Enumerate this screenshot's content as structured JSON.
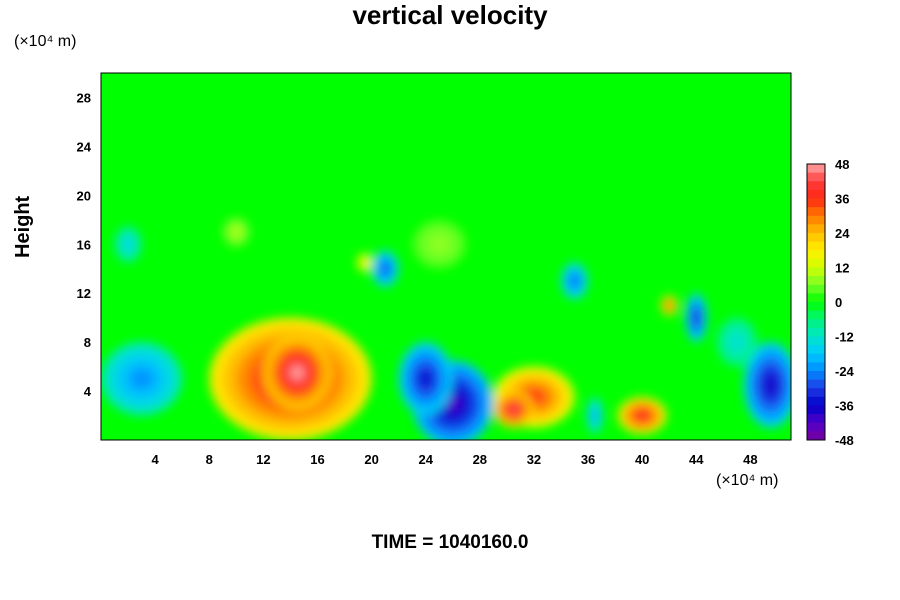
{
  "chart_data": {
    "type": "heatmap",
    "title": "vertical velocity",
    "ylabel": "Height",
    "x_unit_label": "(×10⁴ m)",
    "y_unit_label": "(×10⁴ m)",
    "time_label": "TIME = 1040160.0",
    "xlim": [
      0,
      51
    ],
    "ylim": [
      0,
      30
    ],
    "x_ticks": [
      4,
      8,
      12,
      16,
      20,
      24,
      28,
      32,
      36,
      40,
      44,
      48
    ],
    "y_ticks": [
      4,
      8,
      12,
      16,
      20,
      24,
      28
    ],
    "colorbar": {
      "range": [
        -48,
        48
      ],
      "ticks": [
        48,
        36,
        24,
        12,
        0,
        -12,
        -24,
        -36,
        -48
      ]
    },
    "background_value": 0,
    "features": [
      {
        "x": 14,
        "y": 5,
        "rx": 6,
        "ry": 5,
        "value": 42
      },
      {
        "x": 14.5,
        "y": 5.5,
        "rx": 2.5,
        "ry": 3,
        "value": 48
      },
      {
        "x": 26,
        "y": 3,
        "rx": 3,
        "ry": 3.5,
        "value": -42
      },
      {
        "x": 24,
        "y": 5,
        "rx": 2,
        "ry": 3,
        "value": -36
      },
      {
        "x": 32,
        "y": 3.5,
        "rx": 3,
        "ry": 2.5,
        "value": 36
      },
      {
        "x": 30.5,
        "y": 2.5,
        "rx": 1.5,
        "ry": 1.5,
        "value": 44
      },
      {
        "x": 40,
        "y": 2,
        "rx": 1.8,
        "ry": 1.5,
        "value": 40
      },
      {
        "x": 3,
        "y": 5,
        "rx": 3,
        "ry": 3,
        "value": -24
      },
      {
        "x": 49.5,
        "y": 4.5,
        "rx": 2,
        "ry": 3.5,
        "value": -38
      },
      {
        "x": 44,
        "y": 10,
        "rx": 0.8,
        "ry": 2,
        "value": -34
      },
      {
        "x": 42,
        "y": 11,
        "rx": 0.6,
        "ry": 0.8,
        "value": 36
      },
      {
        "x": 35,
        "y": 13,
        "rx": 1,
        "ry": 1.5,
        "value": -28
      },
      {
        "x": 21,
        "y": 14,
        "rx": 1,
        "ry": 1.5,
        "value": -30
      },
      {
        "x": 19.5,
        "y": 14.5,
        "rx": 0.6,
        "ry": 0.8,
        "value": 20
      },
      {
        "x": 2,
        "y": 16,
        "rx": 1,
        "ry": 1.5,
        "value": -16
      },
      {
        "x": 10,
        "y": 17,
        "rx": 1,
        "ry": 1.2,
        "value": 10
      },
      {
        "x": 25,
        "y": 16,
        "rx": 2,
        "ry": 2,
        "value": 8
      },
      {
        "x": 36.5,
        "y": 2,
        "rx": 0.6,
        "ry": 1.5,
        "value": -22
      },
      {
        "x": 47,
        "y": 8,
        "rx": 1.5,
        "ry": 2,
        "value": -14
      }
    ]
  }
}
